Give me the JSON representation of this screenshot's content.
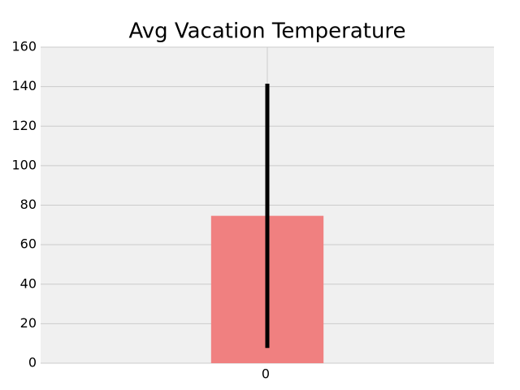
{
  "chart_data": {
    "type": "bar",
    "title": "Avg Vacation Temperature",
    "categories": [
      "0"
    ],
    "values": [
      74.6
    ],
    "yerr": [
      66.9
    ],
    "color": "#f08080",
    "error_color": "#000000",
    "ylim": [
      0,
      160
    ],
    "yticks": [
      0,
      20,
      40,
      60,
      80,
      100,
      120,
      140,
      160
    ],
    "grid": true
  }
}
